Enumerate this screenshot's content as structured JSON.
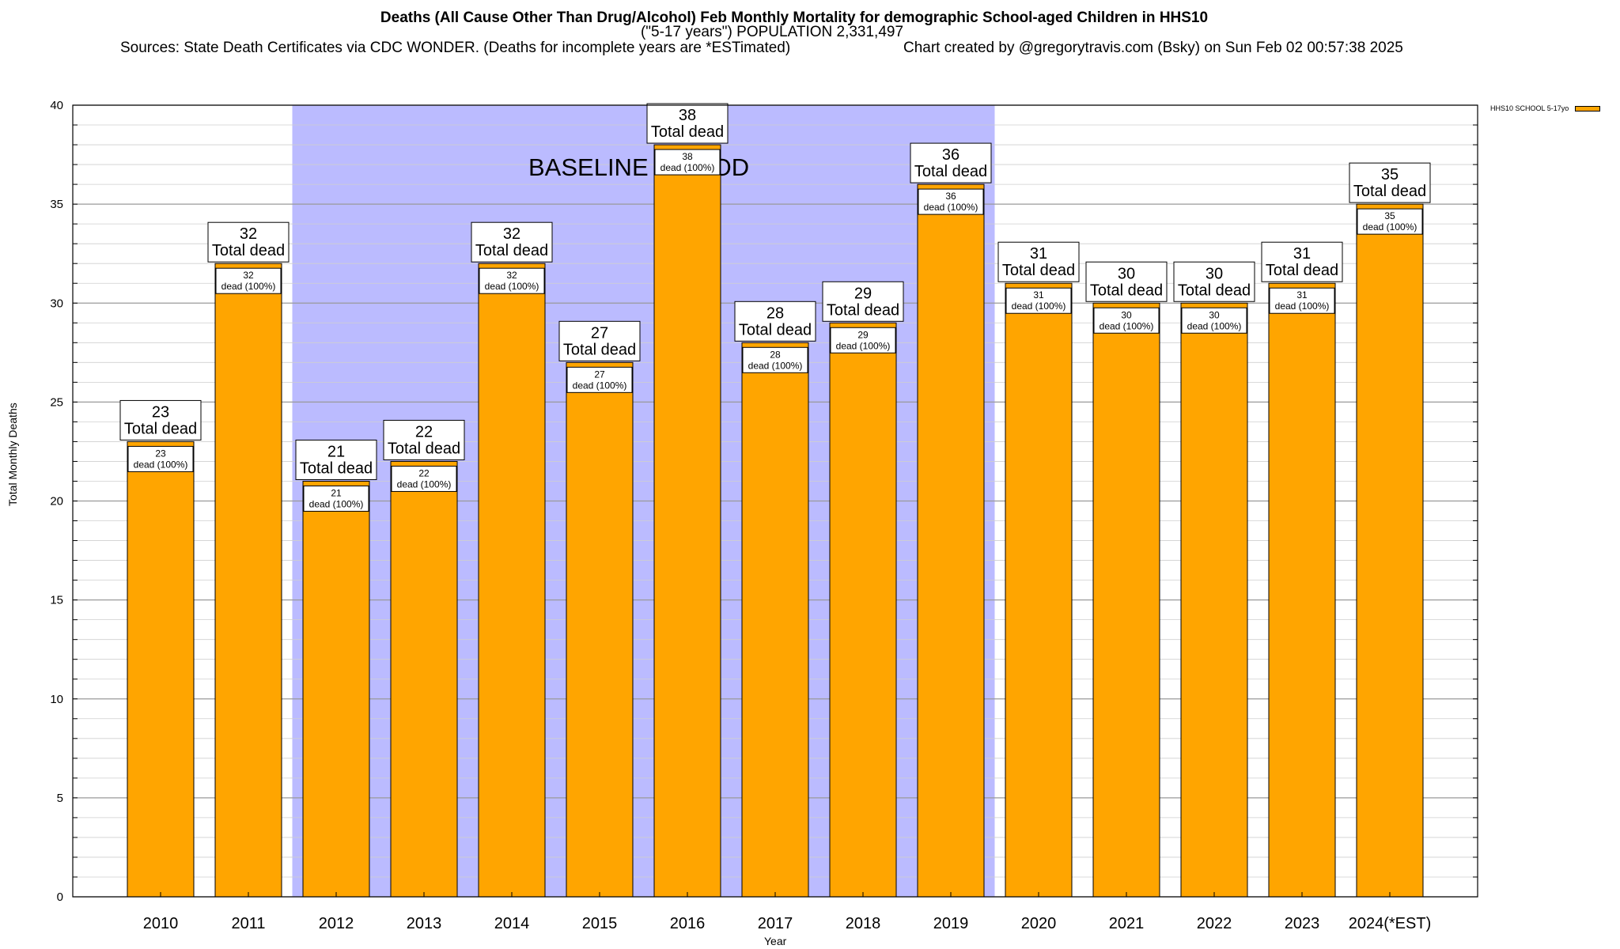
{
  "title": {
    "line1": "Deaths (All Cause Other Than Drug/Alcohol) Feb Monthly Mortality for demographic School-aged Children in HHS10",
    "line2": "(\"5-17 years\") POPULATION 2,331,497",
    "sources": "Sources: State Death Certificates via CDC WONDER. (Deaths for incomplete years are *ESTimated)",
    "credit": "Chart created by @gregorytravis.com (Bsky) on Sun Feb 02 00:57:38 2025"
  },
  "chart_data": {
    "type": "bar",
    "categories": [
      "2010",
      "2011",
      "2012",
      "2013",
      "2014",
      "2015",
      "2016",
      "2017",
      "2018",
      "2019",
      "2020",
      "2021",
      "2022",
      "2023",
      "2024(*EST)"
    ],
    "series": [
      {
        "name": "HHS10 SCHOOL 5-17yo",
        "values": [
          23,
          32,
          21,
          22,
          32,
          27,
          38,
          28,
          29,
          36,
          31,
          30,
          30,
          31,
          35
        ],
        "color": "#ffa500"
      }
    ],
    "top_label_suffix": "Total dead",
    "inner_label_suffix": "dead (100%)",
    "xlabel": "Year",
    "ylabel": "Total Monthly Deaths",
    "ylim": [
      0,
      40
    ],
    "yticks": [
      0,
      5,
      10,
      15,
      20,
      25,
      30,
      35,
      40
    ],
    "minor_grid_step": 1,
    "grid": true,
    "legend_position": "top-right",
    "baseline_period": {
      "label": "BASELINE PERIOD",
      "start": "2012",
      "end": "2019",
      "color": "#bbbbff"
    }
  }
}
